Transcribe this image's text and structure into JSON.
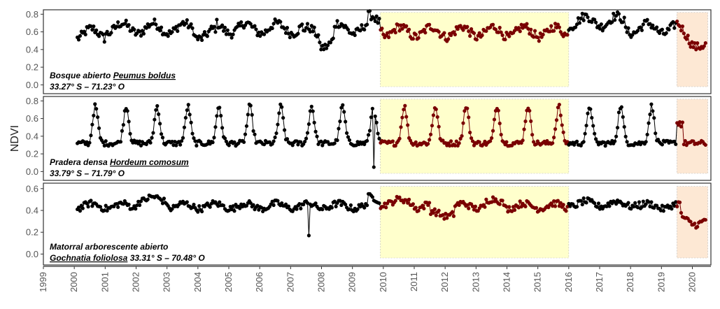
{
  "chart_data": {
    "type": "line",
    "ylabel": "NDVI",
    "x_tick_labels": [
      "1999",
      "2000",
      "2001",
      "2002",
      "2003",
      "2004",
      "2005",
      "2006",
      "2007",
      "2008",
      "2009",
      "2010",
      "2011",
      "2012",
      "2013",
      "2014",
      "2015",
      "2016",
      "2017",
      "2018",
      "2019",
      "2020"
    ],
    "xlim": [
      1999.0,
      2020.6
    ],
    "highlight_periods": [
      {
        "start": 2009.9,
        "end": 2016.0,
        "color": "#ffffcc"
      },
      {
        "start": 2019.5,
        "end": 2020.5,
        "color": "#fde8d4"
      }
    ],
    "series_colors": {
      "normal": "#000000",
      "drought": "#7a0000"
    },
    "panels": [
      {
        "label_line1_parts": [
          {
            "text": "Bosque abierto ",
            "underline": false
          },
          {
            "text": "Peumus boldus",
            "underline": true
          }
        ],
        "label_line2_parts": [
          {
            "text": "33.27° S – 71.23° O",
            "underline": false
          }
        ],
        "ylim": [
          -0.1,
          0.85
        ],
        "yticks": [
          "0.0",
          "0.2",
          "0.4",
          "0.6",
          "0.8"
        ],
        "ytick_values": [
          0.0,
          0.2,
          0.4,
          0.6,
          0.8
        ],
        "profile": "forest"
      },
      {
        "label_line1_parts": [
          {
            "text": "Pradera densa ",
            "underline": false
          },
          {
            "text": "Hordeum comosum",
            "underline": true
          }
        ],
        "label_line2_parts": [
          {
            "text": "33.79° S – 71.79° O",
            "underline": false
          }
        ],
        "ylim": [
          -0.1,
          0.85
        ],
        "yticks": [
          "0.0",
          "0.2",
          "0.4",
          "0.6",
          "0.8"
        ],
        "ytick_values": [
          0.0,
          0.2,
          0.4,
          0.6,
          0.8
        ],
        "profile": "grassland"
      },
      {
        "label_line1_parts": [
          {
            "text": "Matorral arborescente abierto",
            "underline": false
          }
        ],
        "label_line2_parts": [
          {
            "text": "Gochnatia foliolosa",
            "underline": true
          },
          {
            "text": " 33.31° S – 70.48° O",
            "underline": false
          }
        ],
        "ylim": [
          -0.1,
          0.65
        ],
        "yticks": [
          "0.0",
          "0.2",
          "0.4",
          "0.6"
        ],
        "ytick_values": [
          0.0,
          0.2,
          0.4,
          0.6
        ],
        "profile": "shrub"
      }
    ]
  }
}
